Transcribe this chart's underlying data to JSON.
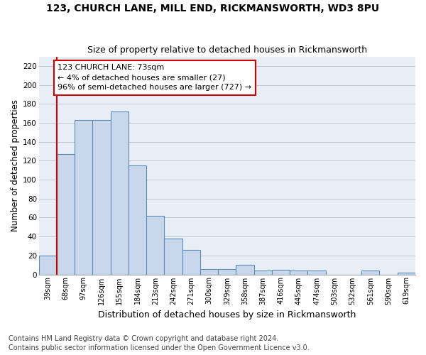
{
  "title1": "123, CHURCH LANE, MILL END, RICKMANSWORTH, WD3 8PU",
  "title2": "Size of property relative to detached houses in Rickmansworth",
  "xlabel": "Distribution of detached houses by size in Rickmansworth",
  "ylabel": "Number of detached properties",
  "footnote1": "Contains HM Land Registry data © Crown copyright and database right 2024.",
  "footnote2": "Contains public sector information licensed under the Open Government Licence v3.0.",
  "bar_labels": [
    "39sqm",
    "68sqm",
    "97sqm",
    "126sqm",
    "155sqm",
    "184sqm",
    "213sqm",
    "242sqm",
    "271sqm",
    "300sqm",
    "329sqm",
    "358sqm",
    "387sqm",
    "416sqm",
    "445sqm",
    "474sqm",
    "503sqm",
    "532sqm",
    "561sqm",
    "590sqm",
    "619sqm"
  ],
  "bar_values": [
    20,
    127,
    163,
    163,
    172,
    115,
    62,
    38,
    26,
    6,
    6,
    10,
    4,
    5,
    4,
    4,
    0,
    0,
    4,
    0,
    2
  ],
  "bar_color": "#c8d8ea",
  "bar_edge_color": "#5b8db8",
  "annotation_box_text": "123 CHURCH LANE: 73sqm\n← 4% of detached houses are smaller (27)\n96% of semi-detached houses are larger (727) →",
  "annotation_line_color": "#cc0000",
  "annotation_box_edge_color": "#cc0000",
  "ylim": [
    0,
    230
  ],
  "yticks": [
    0,
    20,
    40,
    60,
    80,
    100,
    120,
    140,
    160,
    180,
    200,
    220
  ],
  "grid_color": "#bdc8d5",
  "background_color": "#e8eef5",
  "title1_fontsize": 10,
  "title2_fontsize": 9,
  "xlabel_fontsize": 9,
  "ylabel_fontsize": 8.5,
  "tick_fontsize": 7.5,
  "xtick_fontsize": 7,
  "footnote_fontsize": 7,
  "ann_fontsize": 8,
  "red_line_xindex": 1
}
